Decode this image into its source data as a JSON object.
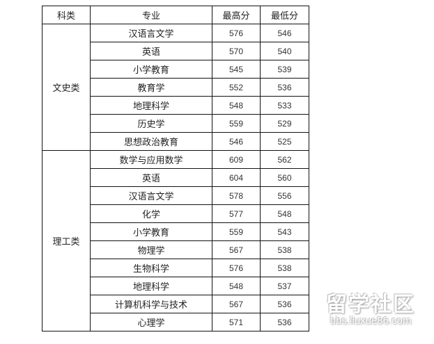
{
  "headers": [
    "科类",
    "专业",
    "最高分",
    "最低分"
  ],
  "groups": [
    {
      "category": "文史类",
      "rows": [
        [
          "汉语言文学",
          "576",
          "546"
        ],
        [
          "英语",
          "570",
          "540"
        ],
        [
          "小学教育",
          "545",
          "539"
        ],
        [
          "教育学",
          "552",
          "536"
        ],
        [
          "地理科学",
          "548",
          "533"
        ],
        [
          "历史学",
          "559",
          "529"
        ],
        [
          "思想政治教育",
          "546",
          "525"
        ]
      ]
    },
    {
      "category": "理工类",
      "rows": [
        [
          "数学与应用数学",
          "609",
          "562"
        ],
        [
          "英语",
          "604",
          "560"
        ],
        [
          "汉语言文学",
          "578",
          "556"
        ],
        [
          "化学",
          "577",
          "548"
        ],
        [
          "小学教育",
          "559",
          "543"
        ],
        [
          "物理学",
          "567",
          "538"
        ],
        [
          "生物科学",
          "576",
          "538"
        ],
        [
          "地理科学",
          "548",
          "537"
        ],
        [
          "计算机科学与技术",
          "567",
          "536"
        ],
        [
          "心理学",
          "571",
          "536"
        ]
      ]
    }
  ],
  "watermark": {
    "logo_text": "留学社区",
    "url": "bbs.liuxue86.com"
  }
}
